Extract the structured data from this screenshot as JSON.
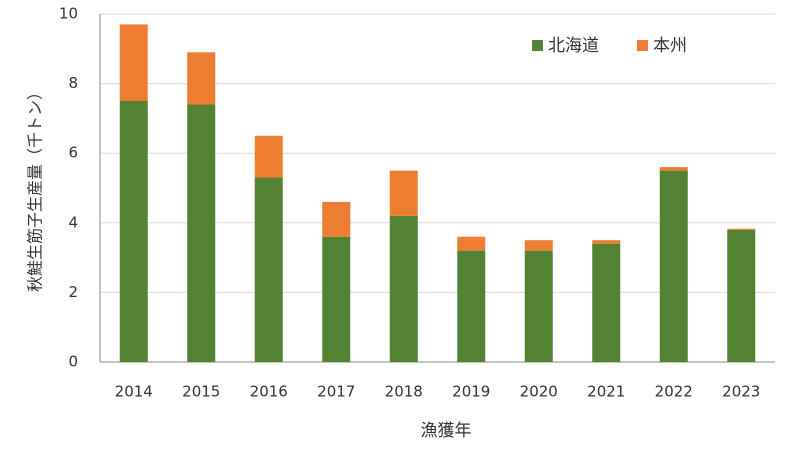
{
  "chart_data": {
    "type": "stacked_bar",
    "x_label": "漁獲年",
    "y_label": "秋鮭生筋子生産量（千トン）",
    "categories": [
      "2014",
      "2015",
      "2016",
      "2017",
      "2018",
      "2019",
      "2020",
      "2021",
      "2022",
      "2023"
    ],
    "series": [
      {
        "name": "北海道",
        "color": "#548235",
        "values": [
          7.5,
          7.4,
          5.3,
          3.6,
          4.2,
          3.2,
          3.2,
          3.4,
          5.5,
          3.8
        ]
      },
      {
        "name": "本州",
        "color": "#ed7d31",
        "values": [
          2.2,
          1.5,
          1.2,
          1.0,
          1.3,
          0.4,
          0.3,
          0.1,
          0.1,
          0.03
        ]
      }
    ],
    "ylim": [
      0,
      10
    ],
    "yticks": [
      0,
      2,
      4,
      6,
      8,
      10
    ],
    "grid": true,
    "legend": "top-right"
  }
}
